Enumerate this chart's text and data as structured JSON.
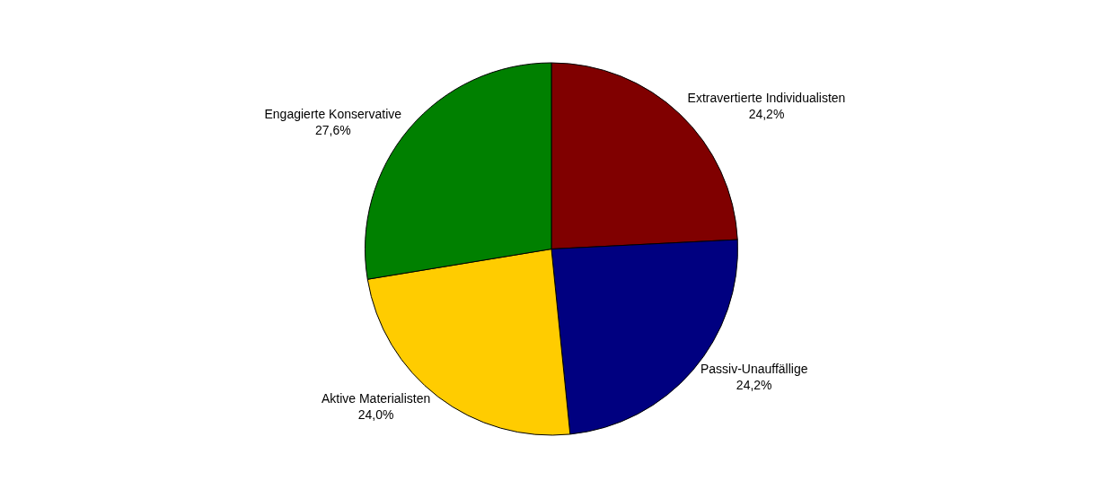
{
  "chart_data": {
    "type": "pie",
    "categories": [
      "Extravertierte Individualisten",
      "Passiv-Unauffällige",
      "Aktive Materialisten",
      "Engagierte Konservative"
    ],
    "values": [
      24.2,
      24.2,
      24.0,
      27.6
    ],
    "value_labels": [
      "24,2%",
      "24,2%",
      "24,0%",
      "27,6%"
    ],
    "colors": [
      "#800000",
      "#000080",
      "#ffcc00",
      "#008000"
    ],
    "legend": false
  }
}
